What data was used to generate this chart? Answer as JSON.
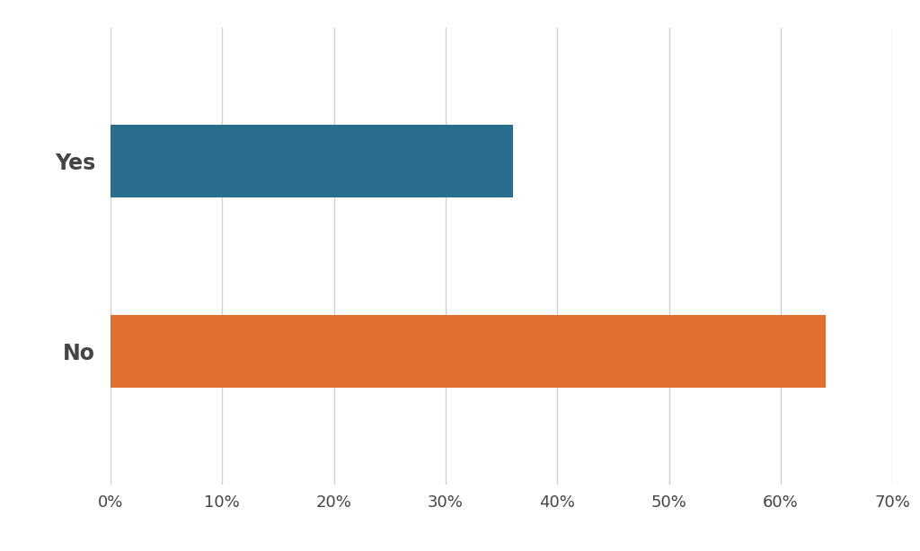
{
  "categories": [
    "No",
    "Yes"
  ],
  "values": [
    64,
    36
  ],
  "bar_colors": [
    "#E07030",
    "#2A6E8E"
  ],
  "xlim": [
    0,
    70
  ],
  "xticks": [
    0,
    10,
    20,
    30,
    40,
    50,
    60,
    70
  ],
  "background_color": "#FFFFFF",
  "grid_color": "#D0D0D0",
  "label_fontsize": 17,
  "tick_fontsize": 13,
  "label_color": "#444444",
  "bar_height": 0.38
}
